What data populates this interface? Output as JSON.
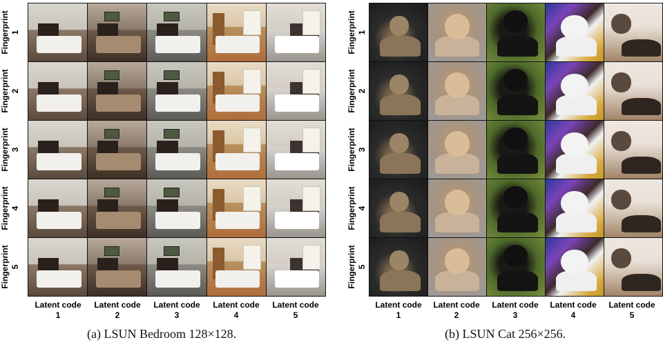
{
  "panels": [
    {
      "id": "bedroom",
      "caption": "(a)  LSUN Bedroom 128×128.",
      "row_labels": [
        {
          "line1": "Fingerprint",
          "line2": "1"
        },
        {
          "line1": "Fingerprint",
          "line2": "2"
        },
        {
          "line1": "Fingerprint",
          "line2": "3"
        },
        {
          "line1": "Fingerprint",
          "line2": "4"
        },
        {
          "line1": "Fingerprint",
          "line2": "5"
        }
      ],
      "col_labels": [
        {
          "line1": "Latent code",
          "line2": "1"
        },
        {
          "line1": "Latent code",
          "line2": "2"
        },
        {
          "line1": "Latent code",
          "line2": "3"
        },
        {
          "line1": "Latent code",
          "line2": "4"
        },
        {
          "line1": "Latent code",
          "line2": "5"
        }
      ]
    },
    {
      "id": "cat",
      "caption": "(b)  LSUN Cat 256×256.",
      "row_labels": [
        {
          "line1": "Fingerprint",
          "line2": "1"
        },
        {
          "line1": "Fingerprint",
          "line2": "2"
        },
        {
          "line1": "Fingerprint",
          "line2": "3"
        },
        {
          "line1": "Fingerprint",
          "line2": "4"
        },
        {
          "line1": "Fingerprint",
          "line2": "5"
        }
      ],
      "col_labels": [
        {
          "line1": "Latent code",
          "line2": "1"
        },
        {
          "line1": "Latent code",
          "line2": "2"
        },
        {
          "line1": "Latent code",
          "line2": "3"
        },
        {
          "line1": "Latent code",
          "line2": "4"
        },
        {
          "line1": "Latent code",
          "line2": "5"
        }
      ]
    }
  ]
}
